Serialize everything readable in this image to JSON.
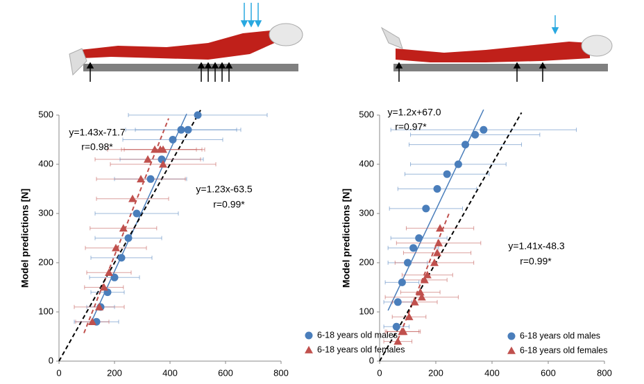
{
  "chart_data": [
    {
      "type": "scatter",
      "ylabel": "Model predictions [N]",
      "xlim": [
        0,
        800
      ],
      "ylim": [
        0,
        500
      ],
      "xticks": [
        0,
        200,
        400,
        600,
        800
      ],
      "yticks": [
        0,
        100,
        200,
        300,
        400,
        500
      ],
      "legend": "lower right",
      "series": [
        {
          "name": "6-18 years old males",
          "color": "#4a7ebb",
          "marker": "circle",
          "x": [
            500,
            440,
            465,
            410,
            370,
            330,
            280,
            250,
            225,
            200,
            175,
            150,
            135
          ],
          "values": [
            500,
            470,
            470,
            450,
            410,
            370,
            300,
            250,
            210,
            170,
            140,
            110,
            80
          ],
          "x_errors": [
            250,
            200,
            190,
            180,
            150,
            130,
            150,
            120,
            110,
            90,
            60,
            50,
            80
          ]
        },
        {
          "name": "6-18 years old females",
          "color": "#c0504d",
          "marker": "triangle",
          "x": [
            345,
            365,
            375,
            320,
            375,
            295,
            265,
            232,
            205,
            180,
            162,
            145,
            120
          ],
          "values": [
            430,
            430,
            430,
            410,
            400,
            370,
            330,
            270,
            230,
            180,
            150,
            110,
            80
          ],
          "x_errors": [
            170,
            130,
            150,
            190,
            190,
            160,
            130,
            120,
            110,
            80,
            70,
            90,
            60
          ]
        }
      ],
      "fits": [
        {
          "color": "#4a7ebb",
          "slope": 1.23,
          "intercept": -63.5,
          "x_range": [
            115,
            460
          ],
          "dashed": false
        },
        {
          "color": "#c0504d",
          "slope": 1.43,
          "intercept": -71.7,
          "x_range": [
            90,
            395
          ],
          "dashed": true
        },
        {
          "color": "#000000",
          "slope": 1,
          "intercept": 0,
          "x_range": [
            0,
            510
          ],
          "dashed": true
        }
      ],
      "annotations": [
        {
          "text": "y=1.43x-71.7",
          "color": "#c0504d"
        },
        {
          "text": "r=0.98*",
          "color": "#c0504d"
        },
        {
          "text": "y=1.23x-63.5",
          "color": "#4a7ebb"
        },
        {
          "text": "r=0.99*",
          "color": "#4a7ebb"
        }
      ]
    },
    {
      "type": "scatter",
      "ylabel": "Model predictions [N]",
      "xlim": [
        0,
        800
      ],
      "ylim": [
        0,
        500
      ],
      "xticks": [
        0,
        200,
        400,
        600,
        800
      ],
      "yticks": [
        0,
        100,
        200,
        300,
        400,
        500
      ],
      "legend": "lower right",
      "series": [
        {
          "name": "6-18 years old males",
          "color": "#4a7ebb",
          "marker": "circle",
          "x": [
            370,
            340,
            305,
            280,
            240,
            205,
            165,
            140,
            120,
            100,
            80,
            65,
            60
          ],
          "values": [
            470,
            460,
            440,
            400,
            380,
            350,
            310,
            250,
            230,
            200,
            160,
            120,
            70
          ],
          "x_errors": [
            330,
            230,
            200,
            170,
            150,
            140,
            130,
            100,
            90,
            70,
            60,
            50,
            45
          ]
        },
        {
          "name": "6-18 years old females",
          "color": "#c0504d",
          "marker": "triangle",
          "x": [
            215,
            210,
            205,
            195,
            170,
            160,
            145,
            150,
            125,
            105,
            85,
            80,
            65
          ],
          "values": [
            270,
            240,
            220,
            200,
            175,
            165,
            140,
            130,
            120,
            90,
            60,
            60,
            40
          ],
          "x_errors": [
            120,
            150,
            120,
            140,
            90,
            80,
            70,
            130,
            80,
            60,
            60,
            60,
            50
          ]
        }
      ],
      "fits": [
        {
          "color": "#4a7ebb",
          "slope": 1.2,
          "intercept": 67.0,
          "x_range": [
            30,
            370
          ],
          "dashed": false
        },
        {
          "color": "#c0504d",
          "slope": 1.41,
          "intercept": -48.3,
          "x_range": [
            65,
            250
          ],
          "dashed": true
        },
        {
          "color": "#000000",
          "slope": 1,
          "intercept": 0,
          "x_range": [
            0,
            505
          ],
          "dashed": true
        }
      ],
      "annotations": [
        {
          "text": "y=1.2x+67.0",
          "color": "#4a7ebb"
        },
        {
          "text": "r=0.97*",
          "color": "#4a7ebb"
        },
        {
          "text": "y=1.41x-48.3",
          "color": "#c0504d"
        },
        {
          "text": "r=0.99*",
          "color": "#c0504d"
        }
      ]
    }
  ]
}
